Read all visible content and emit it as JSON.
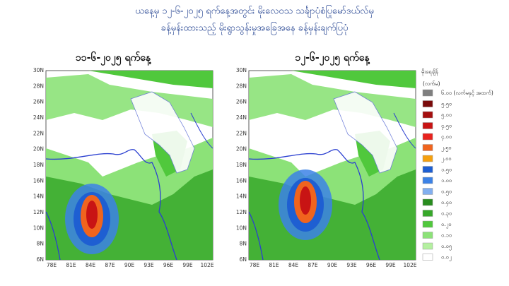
{
  "header": {
    "title_line1": "ယနေ့မှ ၁၂-၆-၂၀၂၅ ရက်နေ့အတွင်း မိုးလေဝသ သင်္ချာပုံစံပြုမော်ဒယ်လ်မှ",
    "title_line2": "ခန့်မှန်းထားသည့် မိုးရွာသွန်းမှုအခြေအနေ ခန့်မှန်းချက်ပြပုံ"
  },
  "panels": [
    {
      "title": "၁၁-၆-၂၀၂၅ ရက်နေ့"
    },
    {
      "title": "၁၂-၆-၂၀၂၅ ရက်နေ့"
    }
  ],
  "lat_labels": [
    "30N",
    "28N",
    "26N",
    "24N",
    "22N",
    "20N",
    "18N",
    "16N",
    "14N",
    "12N",
    "10N",
    "8N",
    "6N"
  ],
  "lon_labels": [
    "78E",
    "81E",
    "84E",
    "87E",
    "90E",
    "93E",
    "96E",
    "99E",
    "102E"
  ],
  "legend": {
    "title": "မိုးရေချိန်",
    "unit": "(လက်မ)",
    "items": [
      {
        "label": "၆.၀၀ (လက်မနှင့် အထက်)",
        "color": "#7f7f7f"
      },
      {
        "label": "၅.၅၀",
        "color": "#7a0a0a"
      },
      {
        "label": "၅.၀၀",
        "color": "#a50f0f"
      },
      {
        "label": "၄.၅၀",
        "color": "#c81414"
      },
      {
        "label": "၄.၀၀",
        "color": "#e8231e"
      },
      {
        "label": "၂.၅၀",
        "color": "#f0641e"
      },
      {
        "label": "၂.၀၀",
        "color": "#f5a00f"
      },
      {
        "label": "၁.၅၀",
        "color": "#1e5fd2"
      },
      {
        "label": "၁.၀၀",
        "color": "#3c82e6"
      },
      {
        "label": "၀.၅၀",
        "color": "#82aff0"
      },
      {
        "label": "၀.၄၀",
        "color": "#288c1e"
      },
      {
        "label": "၀.၃၀",
        "color": "#37a82a"
      },
      {
        "label": "၀.၂၀",
        "color": "#50c83c"
      },
      {
        "label": "၀.၁၀",
        "color": "#8ce278"
      },
      {
        "label": "၀.၀၅",
        "color": "#b4f0a0"
      },
      {
        "label": "၀.၀၂",
        "color": "#ffffff"
      }
    ]
  }
}
